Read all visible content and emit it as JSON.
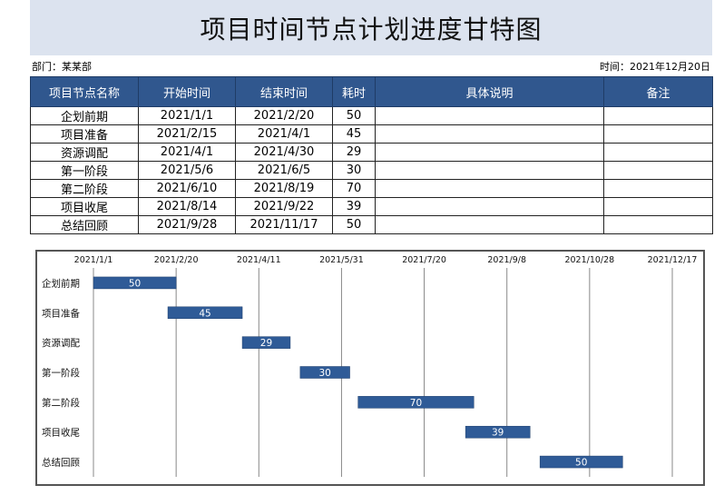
{
  "title": "项目时间节点计划进度甘特图",
  "department": "部门：某某部",
  "time": "时间：2021年12月20日",
  "table": {
    "headers": [
      "项目节点名称",
      "开始时间",
      "结束时间",
      "耗时",
      "具体说明",
      "备注"
    ],
    "rows": [
      [
        "企划前期",
        "2021/1/1",
        "2021/2/20",
        "50",
        "",
        ""
      ],
      [
        "项目准备",
        "2021/2/15",
        "2021/4/1",
        "45",
        "",
        ""
      ],
      [
        "资源调配",
        "2021/4/1",
        "2021/4/30",
        "29",
        "",
        ""
      ],
      [
        "第一阶段",
        "2021/5/6",
        "2021/6/5",
        "30",
        "",
        ""
      ],
      [
        "第二阶段",
        "2021/6/10",
        "2021/8/19",
        "70",
        "",
        ""
      ],
      [
        "项目收尾",
        "2021/8/14",
        "2021/9/22",
        "39",
        "",
        ""
      ],
      [
        "总结回顾",
        "2021/9/28",
        "2021/11/17",
        "50",
        "",
        ""
      ]
    ]
  },
  "chart_data": {
    "type": "bar",
    "orientation": "horizontal-gantt",
    "categories": [
      "企划前期",
      "项目准备",
      "资源调配",
      "第一阶段",
      "第二阶段",
      "项目收尾",
      "总结回顾"
    ],
    "start": [
      "2021/1/1",
      "2021/2/15",
      "2021/4/1",
      "2021/5/6",
      "2021/6/10",
      "2021/8/14",
      "2021/9/28"
    ],
    "values": [
      50,
      45,
      29,
      30,
      70,
      39,
      50
    ],
    "x_ticks": [
      "2021/1/1",
      "2021/2/20",
      "2021/4/11",
      "2021/5/31",
      "2021/7/20",
      "2021/9/8",
      "2021/10/28",
      "2021/12/17"
    ],
    "xlim": [
      "2021/1/1",
      "2021/12/17"
    ],
    "x_axis_position": "top",
    "grid": true,
    "bar_color": "#2f5b97"
  }
}
